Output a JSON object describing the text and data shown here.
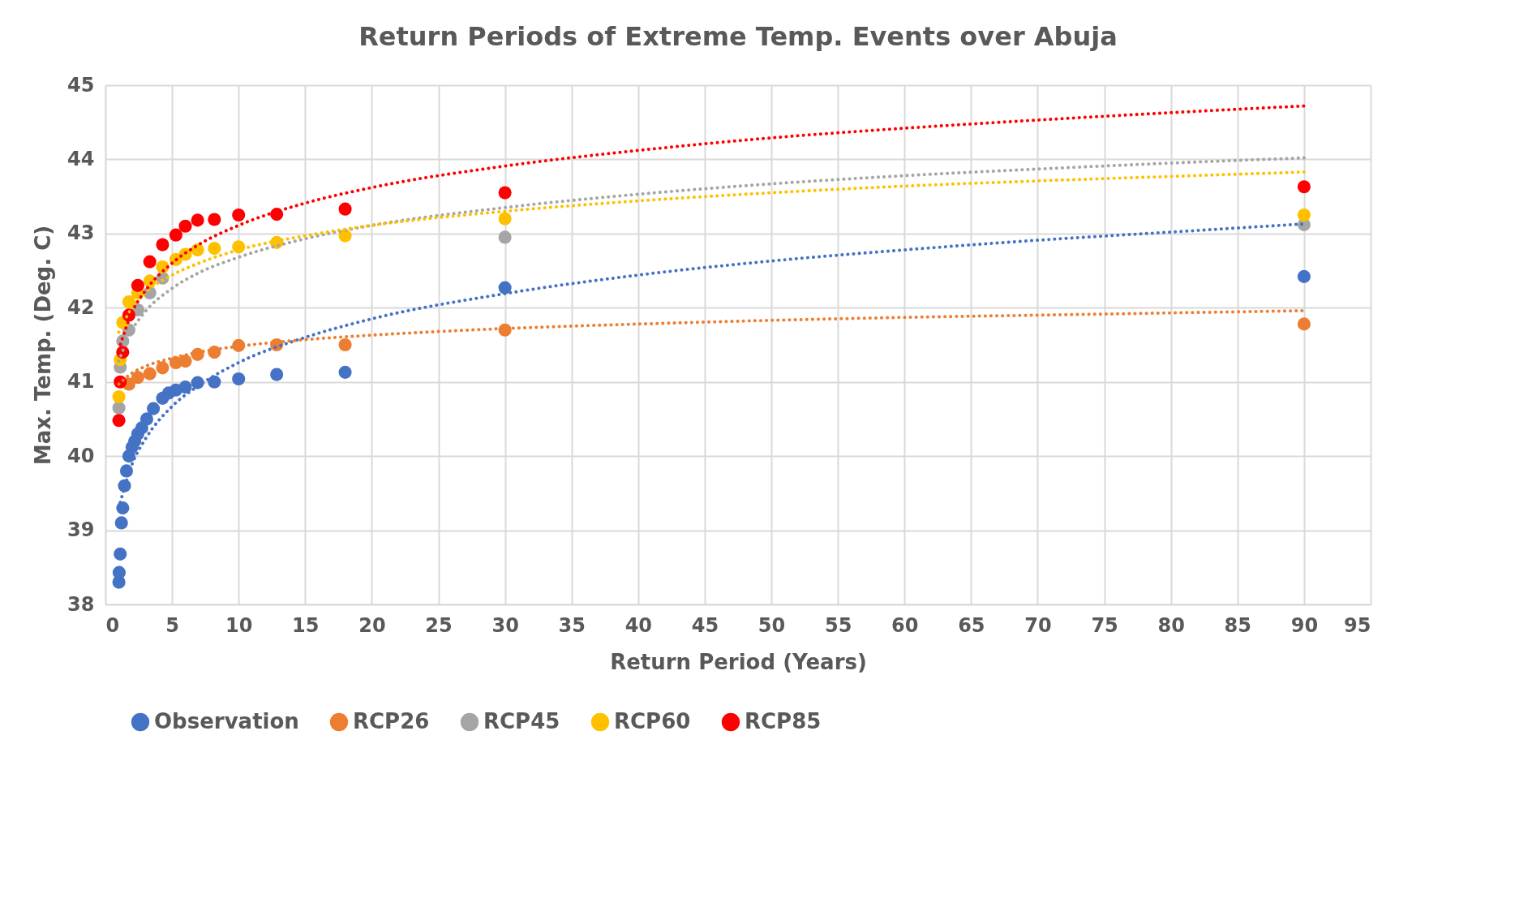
{
  "chart_data": {
    "type": "scatter",
    "title": "Return Periods of Extreme Temp. Events over Abuja",
    "xlabel": "Return Period (Years)",
    "ylabel": "Max. Temp. (Deg. C)",
    "xlim": [
      0,
      95
    ],
    "xticks": [
      0,
      5,
      10,
      15,
      20,
      25,
      30,
      35,
      40,
      45,
      50,
      55,
      60,
      65,
      70,
      75,
      80,
      85,
      90,
      95
    ],
    "ylim": [
      38,
      45
    ],
    "yticks": [
      38,
      39,
      40,
      41,
      42,
      43,
      44,
      45
    ],
    "grid": true,
    "legend": "bottom",
    "marker": "circle",
    "x": [
      90,
      30,
      18,
      12.86,
      10,
      8.18,
      6.92,
      6,
      5.29,
      4.29,
      3.33,
      2.43,
      1.76,
      1.3,
      1.11,
      1.01
    ],
    "series": [
      {
        "name": "Observation",
        "color": "#4472c4",
        "x": [
          90,
          30,
          18,
          12.86,
          10,
          8.18,
          6.92,
          6,
          5.29,
          4.74,
          4.29,
          3.6,
          3.1,
          2.73,
          2.43,
          2.2,
          2,
          1.76,
          1.58,
          1.43,
          1.3,
          1.2,
          1.11,
          1.03,
          1.01
        ],
        "values": [
          42.42,
          42.27,
          41.13,
          41.1,
          41.04,
          41.0,
          40.99,
          40.93,
          40.89,
          40.85,
          40.78,
          40.64,
          40.5,
          40.38,
          40.3,
          40.2,
          40.12,
          40.0,
          39.8,
          39.6,
          39.3,
          39.1,
          38.68,
          38.43,
          38.3
        ]
      },
      {
        "name": "RCP26",
        "color": "#ed7d31",
        "values": [
          41.78,
          41.7,
          41.5,
          41.5,
          41.49,
          41.4,
          41.37,
          41.28,
          41.26,
          41.19,
          41.11,
          41.06,
          40.97,
          null,
          null,
          null
        ]
      },
      {
        "name": "RCP45",
        "color": "#a5a5a5",
        "values": [
          43.12,
          42.95,
          null,
          null,
          null,
          null,
          null,
          null,
          null,
          42.4,
          42.2,
          41.97,
          41.7,
          41.55,
          41.2,
          40.65
        ]
      },
      {
        "name": "RCP60",
        "color": "#ffc000",
        "values": [
          43.25,
          43.2,
          42.97,
          42.88,
          42.82,
          42.8,
          42.78,
          42.72,
          42.65,
          42.55,
          42.36,
          42.2,
          42.08,
          41.8,
          41.3,
          40.8
        ]
      },
      {
        "name": "RCP85",
        "color": "#ff0000",
        "values": [
          43.63,
          43.55,
          43.33,
          43.26,
          43.25,
          43.19,
          43.18,
          43.1,
          42.98,
          42.85,
          42.62,
          42.3,
          41.9,
          41.4,
          41.0,
          40.48
        ]
      },
      {
        "type": "line",
        "line_style": "dotted",
        "marker": "none",
        "color": "#4472c4",
        "x": [
          1,
          2,
          3,
          5,
          7,
          10,
          15,
          20,
          30,
          40,
          50,
          60,
          70,
          80,
          90
        ],
        "values": [
          39.3,
          39.89,
          40.23,
          40.67,
          40.95,
          41.26,
          41.6,
          41.85,
          42.19,
          42.44,
          42.63,
          42.78,
          42.91,
          43.02,
          43.13
        ]
      },
      {
        "type": "line",
        "line_style": "dotted",
        "marker": "none",
        "color": "#ed7d31",
        "x": [
          1,
          2,
          3,
          5,
          7,
          10,
          15,
          20,
          30,
          40,
          50,
          60,
          70,
          80,
          90
        ],
        "values": [
          40.97,
          41.12,
          41.21,
          41.32,
          41.4,
          41.48,
          41.57,
          41.63,
          41.72,
          41.78,
          41.83,
          41.87,
          41.9,
          41.93,
          41.96
        ]
      },
      {
        "type": "line",
        "line_style": "dotted",
        "marker": "none",
        "color": "#a5a5a5",
        "x": [
          1,
          2,
          3,
          5,
          7,
          10,
          15,
          20,
          30,
          40,
          50,
          60,
          70,
          80,
          90
        ],
        "values": [
          41.28,
          41.7,
          41.95,
          42.26,
          42.47,
          42.68,
          42.93,
          43.11,
          43.35,
          43.53,
          43.67,
          43.78,
          43.87,
          43.95,
          44.02
        ]
      },
      {
        "type": "line",
        "line_style": "dotted",
        "marker": "none",
        "color": "#ffc000",
        "x": [
          1,
          2,
          3,
          5,
          7,
          10,
          15,
          20,
          30,
          40,
          50,
          60,
          70,
          80,
          90
        ],
        "values": [
          41.67,
          42.0,
          42.2,
          42.44,
          42.6,
          42.78,
          42.97,
          43.11,
          43.3,
          43.44,
          43.55,
          43.64,
          43.71,
          43.77,
          43.83
        ]
      },
      {
        "type": "line",
        "line_style": "dotted",
        "marker": "none",
        "color": "#ff0000",
        "x": [
          1,
          2,
          3,
          5,
          7,
          10,
          15,
          20,
          30,
          40,
          50,
          60,
          70,
          80,
          90
        ],
        "values": [
          41.43,
          41.94,
          42.23,
          42.6,
          42.85,
          43.11,
          43.41,
          43.62,
          43.91,
          44.12,
          44.29,
          44.42,
          44.53,
          44.63,
          44.72
        ]
      }
    ]
  }
}
